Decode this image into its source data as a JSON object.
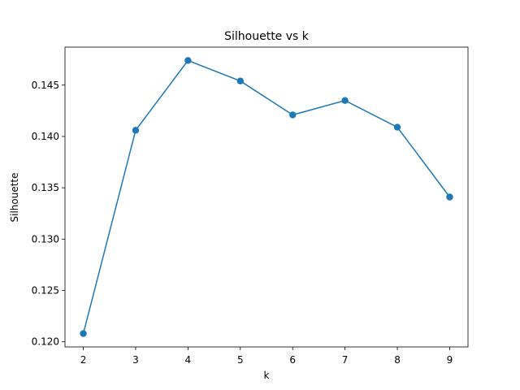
{
  "chart_data": {
    "type": "line",
    "title": "Silhouette vs k",
    "xlabel": "k",
    "ylabel": "Silhouette",
    "x": [
      2,
      3,
      4,
      5,
      6,
      7,
      8,
      9
    ],
    "y": [
      0.1208,
      0.1406,
      0.1474,
      0.1454,
      0.1421,
      0.1435,
      0.1409,
      0.1341
    ],
    "xlim": [
      1.65,
      9.35
    ],
    "ylim": [
      0.1195,
      0.1487
    ],
    "xticks": [
      2,
      3,
      4,
      5,
      6,
      7,
      8,
      9
    ],
    "xtick_labels": [
      "2",
      "3",
      "4",
      "5",
      "6",
      "7",
      "8",
      "9"
    ],
    "yticks": [
      0.12,
      0.125,
      0.13,
      0.135,
      0.14,
      0.145
    ],
    "ytick_labels": [
      "0.120",
      "0.125",
      "0.130",
      "0.135",
      "0.140",
      "0.145"
    ],
    "marker": "circle",
    "grid": false,
    "colors": {
      "series": "#1f77b4",
      "axis": "#000000",
      "background": "#ffffff"
    }
  }
}
